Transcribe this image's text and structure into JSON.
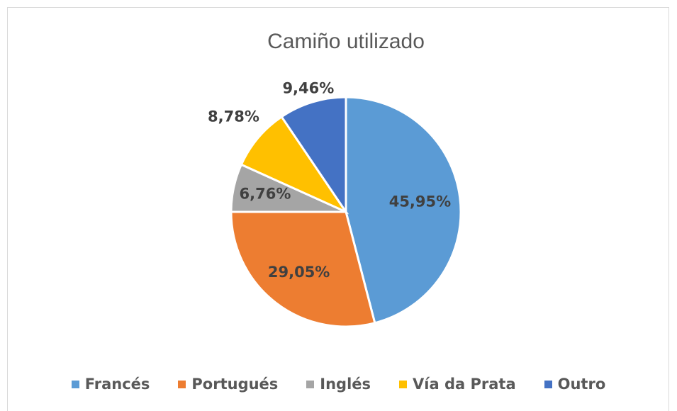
{
  "chart_data": {
    "type": "pie",
    "title": "Camiño utilizado",
    "categories": [
      "Francés",
      "Portugués",
      "Inglés",
      "Vía da Prata",
      "Outro"
    ],
    "values": [
      45.95,
      29.05,
      6.76,
      8.78,
      9.46
    ],
    "value_labels": [
      "45,95%",
      "29,05%",
      "6,76%",
      "8,78%",
      "9,46%"
    ],
    "colors": [
      "#5b9bd5",
      "#ed7d31",
      "#a5a5a5",
      "#ffc000",
      "#4472c4"
    ],
    "legend": "bottom"
  }
}
